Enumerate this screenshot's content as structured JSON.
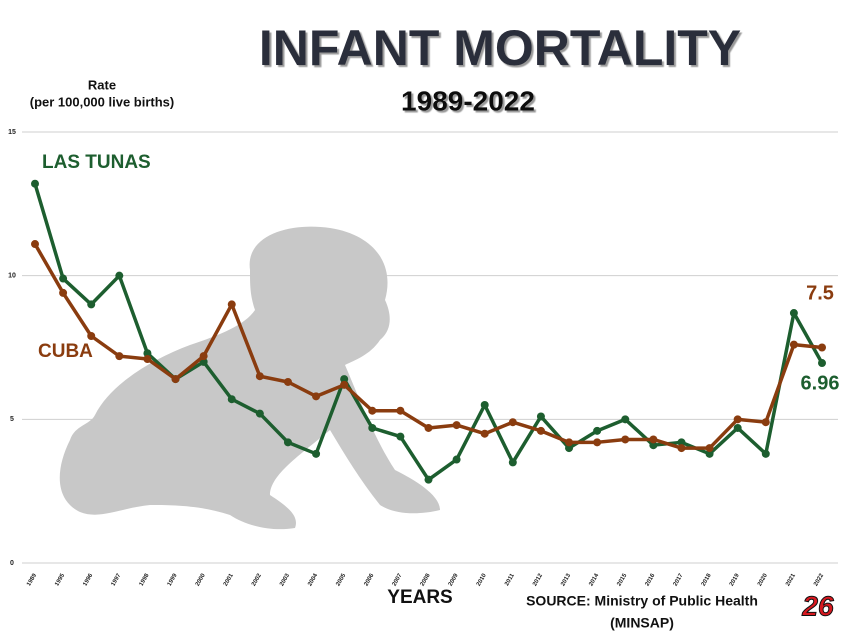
{
  "chart_data": {
    "type": "line",
    "title": "INFANT MORTALITY",
    "subtitle": "1989-2022",
    "y_label": [
      "Rate",
      "(per 100,000 live births)"
    ],
    "x_label": "YEARS",
    "source": [
      "SOURCE: Ministry of Public Health",
      "(MINSAP)"
    ],
    "logo": "26",
    "categories": [
      "1989",
      "1995",
      "1996",
      "1997",
      "1998",
      "1999",
      "2000",
      "2001",
      "2002",
      "2003",
      "2004",
      "2005",
      "2006",
      "2007",
      "2008",
      "2009",
      "2010",
      "2011",
      "2012",
      "2013",
      "2014",
      "2015",
      "2016",
      "2017",
      "2018",
      "2019",
      "2020",
      "2021",
      "2022"
    ],
    "series": [
      {
        "name": "LAS TUNAS",
        "color": "#1d5e2f",
        "values": [
          13.2,
          9.9,
          9.0,
          10.0,
          7.3,
          6.4,
          7.0,
          5.7,
          5.2,
          4.2,
          3.8,
          6.4,
          4.7,
          4.4,
          2.9,
          3.6,
          5.5,
          3.5,
          5.1,
          4.0,
          4.6,
          5.0,
          4.1,
          4.2,
          3.8,
          4.7,
          3.8,
          8.7,
          6.96
        ]
      },
      {
        "name": "CUBA",
        "color": "#8a3c0f",
        "values": [
          11.1,
          9.4,
          7.9,
          7.2,
          7.1,
          6.4,
          7.2,
          9.0,
          6.5,
          6.3,
          5.8,
          6.2,
          5.3,
          5.3,
          4.7,
          4.8,
          4.5,
          4.9,
          4.6,
          4.2,
          4.2,
          4.3,
          4.3,
          4.0,
          4.0,
          5.0,
          4.9,
          7.6,
          7.5
        ]
      }
    ],
    "ylim": [
      0,
      15
    ],
    "yticks": [
      0,
      5,
      10,
      15
    ],
    "grid": true
  }
}
